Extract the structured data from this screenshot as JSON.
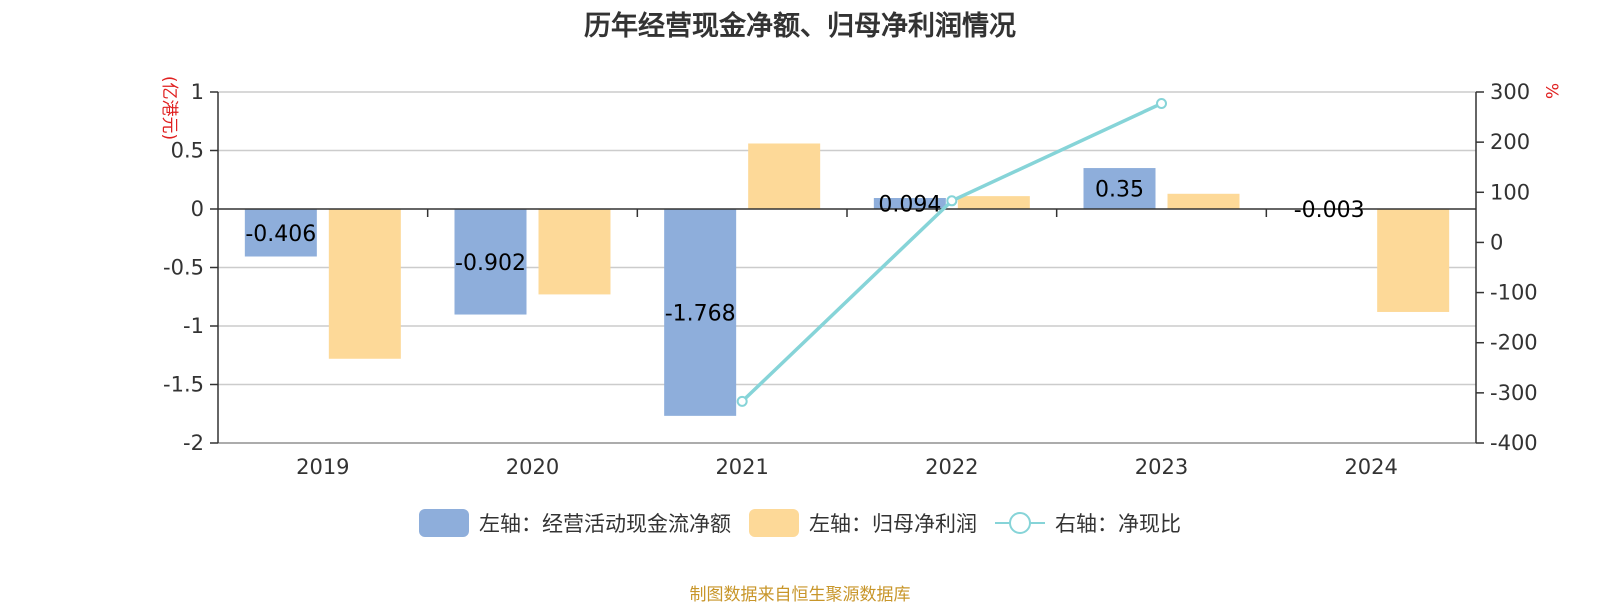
{
  "chart_data": {
    "type": "bar",
    "title": "历年经营现金净额、归母净利润情况",
    "categories": [
      "2019",
      "2020",
      "2021",
      "2022",
      "2023",
      "2024"
    ],
    "y_left": {
      "unit": "(亿港元)",
      "ylim": [
        -2,
        1
      ],
      "ticks": [
        "1",
        "0.5",
        "0",
        "-0.5",
        "-1",
        "-1.5",
        "-2"
      ],
      "tick_values": [
        1,
        0.5,
        0,
        -0.5,
        -1,
        -1.5,
        -2
      ]
    },
    "y_right": {
      "unit": "%",
      "ylim": [
        -400,
        300
      ],
      "ticks": [
        "300",
        "200",
        "100",
        "0",
        "-100",
        "-200",
        "-300",
        "-400"
      ],
      "tick_values": [
        300,
        200,
        100,
        0,
        -100,
        -200,
        -300,
        -400
      ]
    },
    "series": [
      {
        "name": "左轴：经营活动现金流净额",
        "kind": "bar",
        "axis": "left",
        "color": "#8eaedb",
        "values": [
          -0.406,
          -0.902,
          -1.768,
          0.094,
          0.35,
          -0.003
        ],
        "labels": [
          "-0.406",
          "-0.902",
          "-1.768",
          "0.094",
          "0.35",
          "-0.003"
        ]
      },
      {
        "name": "左轴：归母净利润",
        "kind": "bar",
        "axis": "left",
        "color": "#fdd998",
        "values": [
          -1.28,
          -0.73,
          0.56,
          0.11,
          0.13,
          -0.88
        ]
      },
      {
        "name": "右轴：净现比",
        "kind": "line",
        "axis": "right",
        "color": "#86d4d8",
        "values": [
          null,
          null,
          -317,
          83,
          277,
          null
        ]
      }
    ],
    "grid": true,
    "legend_position": "bottom"
  },
  "source_note": "制图数据来自恒生聚源数据库"
}
